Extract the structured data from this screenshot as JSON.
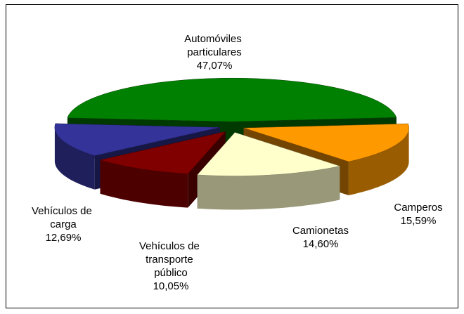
{
  "chart_data": {
    "type": "pie",
    "categories": [
      "Automóviles particulares",
      "Camperos",
      "Camionetas",
      "Vehículos de transporte público",
      "Vehículos de carga"
    ],
    "values": [
      47.07,
      15.59,
      14.6,
      10.05,
      12.69
    ],
    "value_labels": [
      "47,07%",
      "15,59%",
      "14,60%",
      "10,05%",
      "12,69%"
    ],
    "colors": [
      "#008000",
      "#ff9900",
      "#ffffcc",
      "#800000",
      "#333399"
    ]
  }
}
